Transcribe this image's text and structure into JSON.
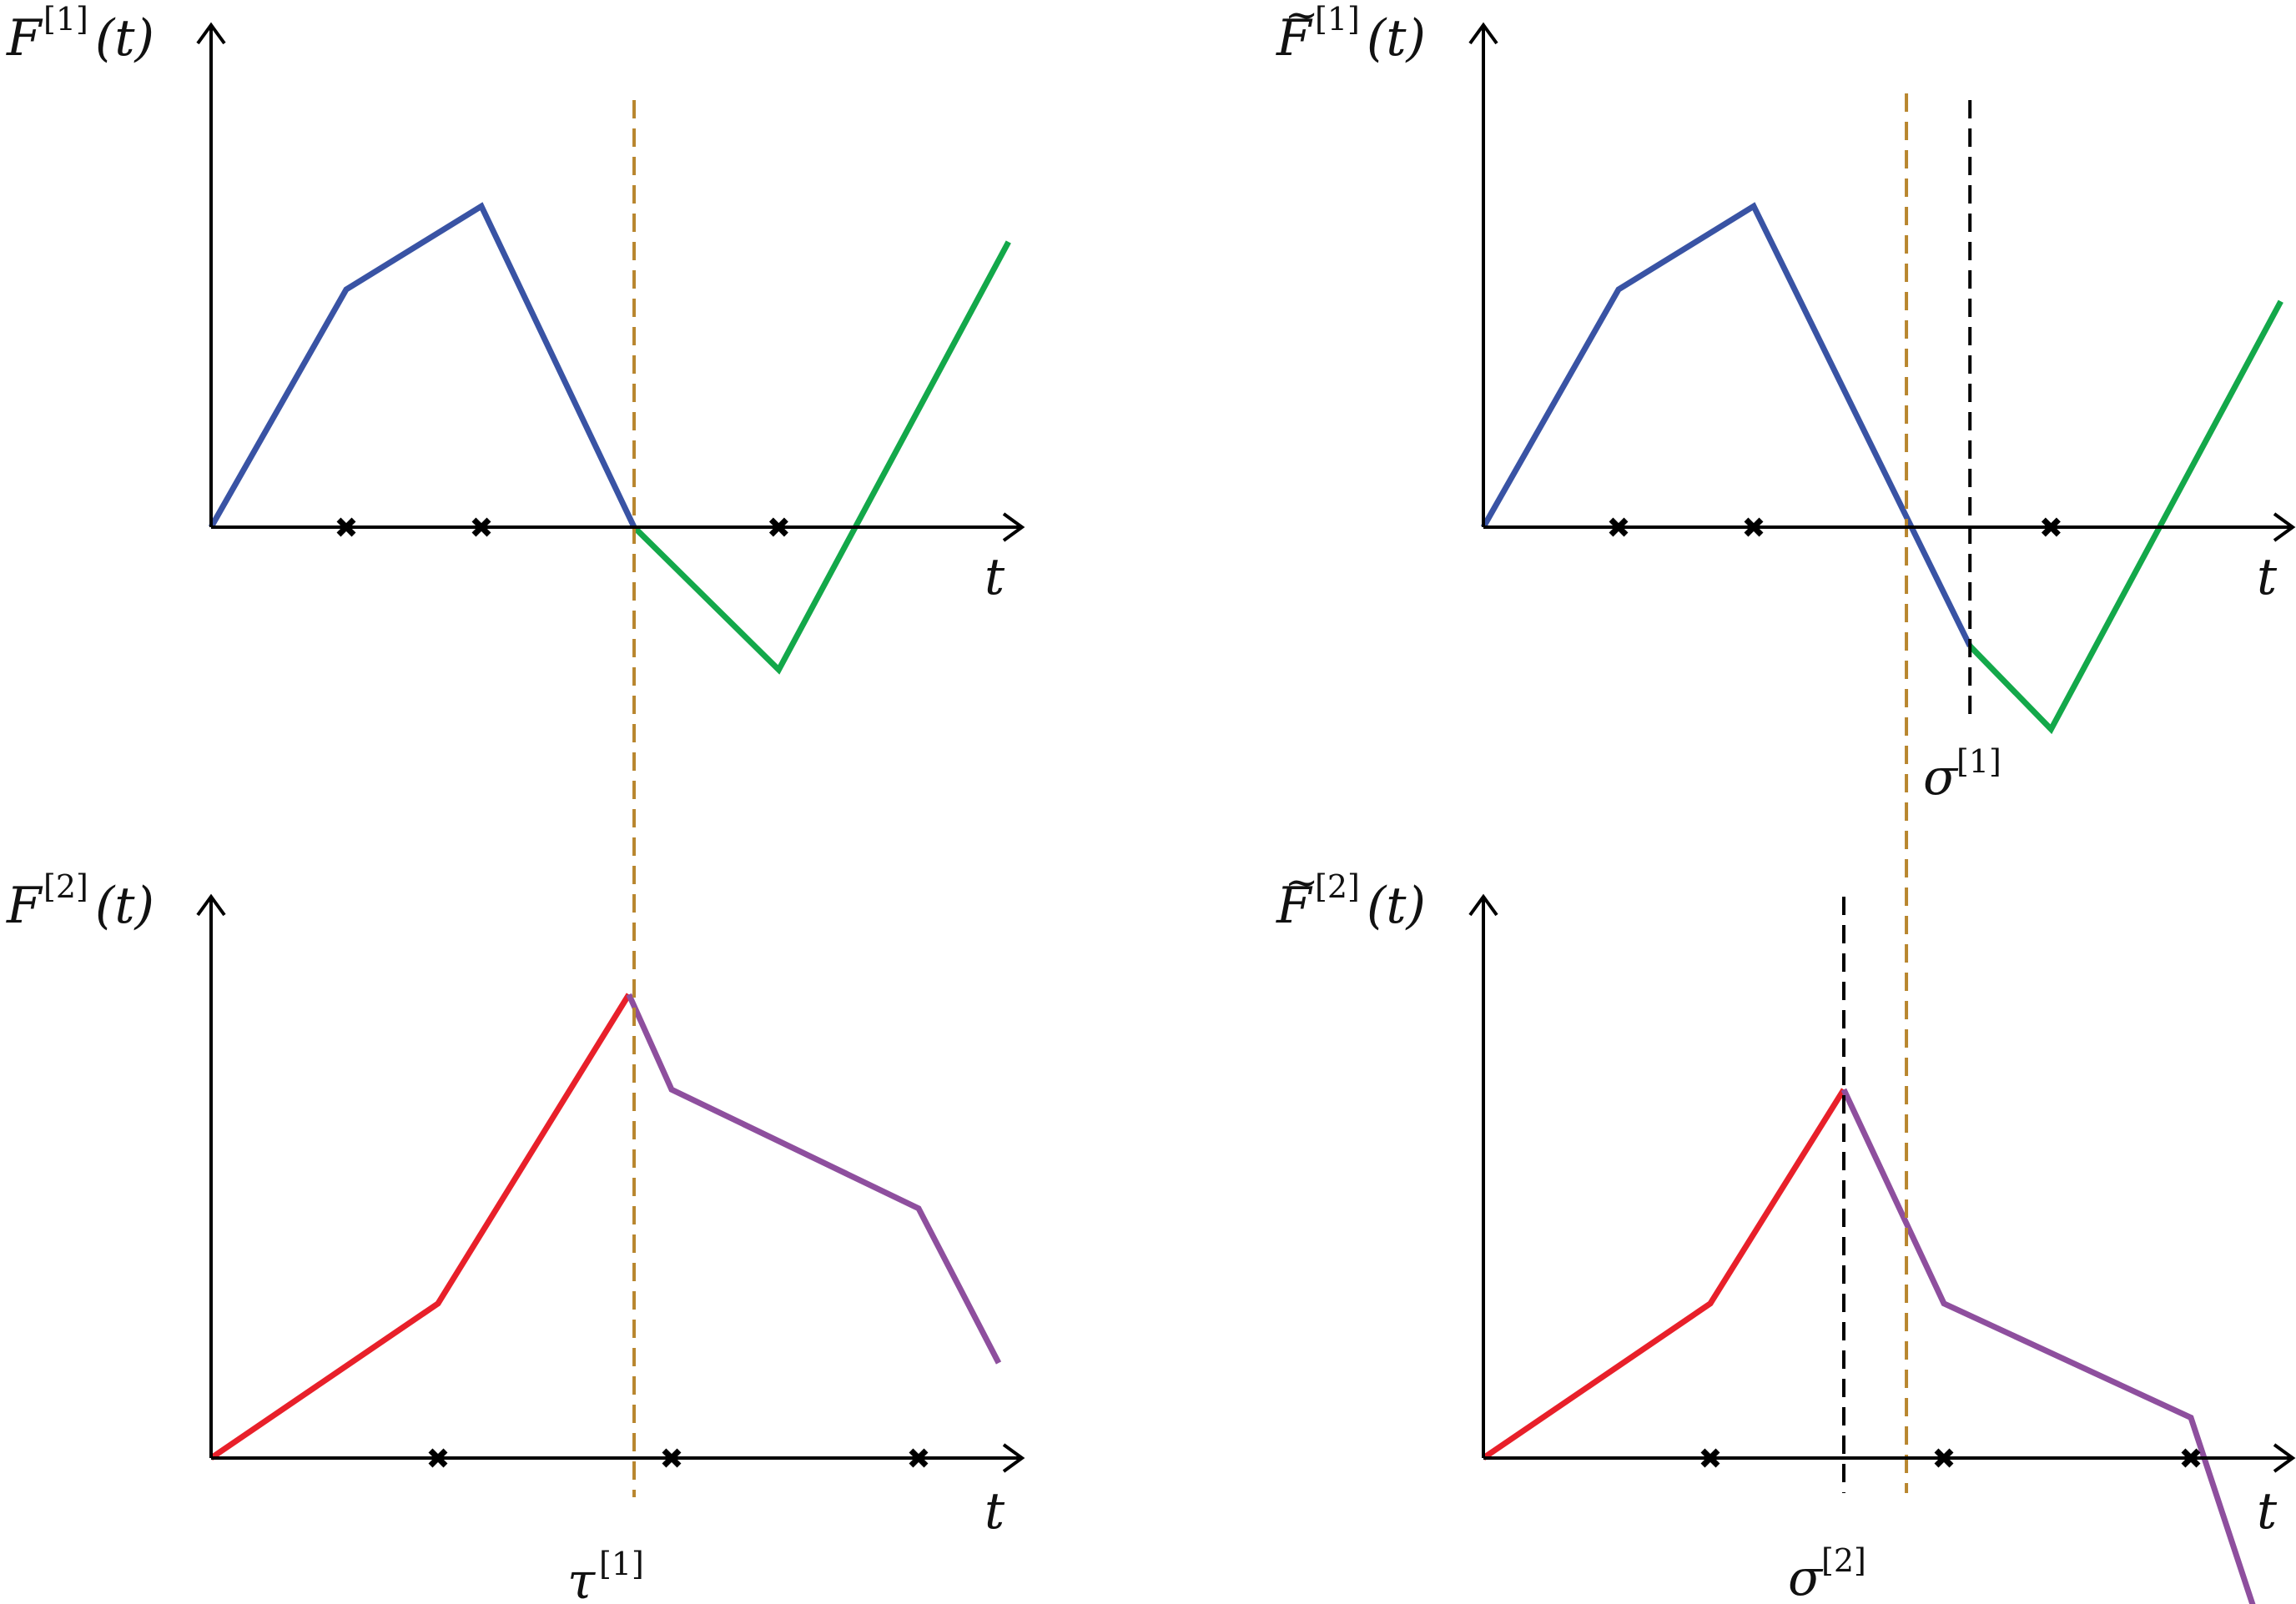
{
  "colors": {
    "axis": "#000000",
    "blue": "#3953a4",
    "green": "#13a84a",
    "red": "#e8202a",
    "purple": "#8e4f9e",
    "orange_dashed": "#b8862e",
    "black_dashed": "#000000"
  },
  "panels": [
    {
      "id": "top-left",
      "ylabel": {
        "fn": "F",
        "sup": "[1]",
        "arg": "(t)",
        "tilde": false
      },
      "xlabel": "t",
      "markers_t": [
        1,
        2,
        4.2
      ],
      "segments": [
        {
          "color": "blue",
          "points": [
            [
              0,
              0
            ],
            [
              1,
              1
            ],
            [
              2,
              1.35
            ],
            [
              3.13,
              0
            ]
          ]
        },
        {
          "color": "green",
          "points": [
            [
              3.13,
              0
            ],
            [
              4.2,
              -0.6
            ],
            [
              5.9,
              1.2
            ]
          ]
        }
      ]
    },
    {
      "id": "top-right",
      "ylabel": {
        "fn": "F",
        "sup": "[1]",
        "arg": "(t)",
        "tilde": true
      },
      "xlabel": "t",
      "markers_t": [
        1,
        2,
        4.2
      ],
      "vline_label": {
        "base": "σ",
        "sup": "[1]"
      },
      "segments": [
        {
          "color": "blue",
          "points": [
            [
              0,
              0
            ],
            [
              1,
              1
            ],
            [
              2,
              1.35
            ],
            [
              3.6,
              -0.5
            ]
          ]
        },
        {
          "color": "green",
          "points": [
            [
              3.6,
              -0.5
            ],
            [
              4.2,
              -0.85
            ],
            [
              5.9,
              0.95
            ]
          ]
        }
      ]
    },
    {
      "id": "bottom-left",
      "ylabel": {
        "fn": "F",
        "sup": "[2]",
        "arg": "(t)",
        "tilde": false
      },
      "xlabel": "t",
      "markers_t": [
        1.7,
        3.45,
        5.3
      ],
      "vline_label": {
        "base": "τ",
        "sup": "[1]"
      },
      "segments": [
        {
          "color": "red",
          "points": [
            [
              0,
              0
            ],
            [
              1.7,
              0.65
            ],
            [
              3.13,
              1.95
            ]
          ]
        },
        {
          "color": "purple",
          "points": [
            [
              3.13,
              1.95
            ],
            [
              3.45,
              1.55
            ],
            [
              5.3,
              1.05
            ],
            [
              5.9,
              0.4
            ]
          ]
        }
      ]
    },
    {
      "id": "bottom-right",
      "ylabel": {
        "fn": "F",
        "sup": "[2]",
        "arg": "(t)",
        "tilde": true
      },
      "xlabel": "t",
      "markers_t": [
        1.7,
        3.45,
        5.3
      ],
      "vline_label": {
        "base": "σ",
        "sup": "[2]"
      },
      "segments": [
        {
          "color": "red",
          "points": [
            [
              0,
              0
            ],
            [
              1.7,
              0.65
            ],
            [
              2.7,
              1.55
            ]
          ]
        },
        {
          "color": "purple",
          "points": [
            [
              2.7,
              1.55
            ],
            [
              3.45,
              0.65
            ],
            [
              5.3,
              0.17
            ],
            [
              5.9,
              -0.85
            ]
          ]
        }
      ]
    }
  ],
  "vlines": [
    {
      "color": "orange_dashed",
      "t": 3.13
    },
    {
      "color": "black_dashed",
      "t": 3.6,
      "panel": "top-right"
    },
    {
      "color": "black_dashed",
      "t": 2.7,
      "panel": "bottom-right"
    }
  ]
}
